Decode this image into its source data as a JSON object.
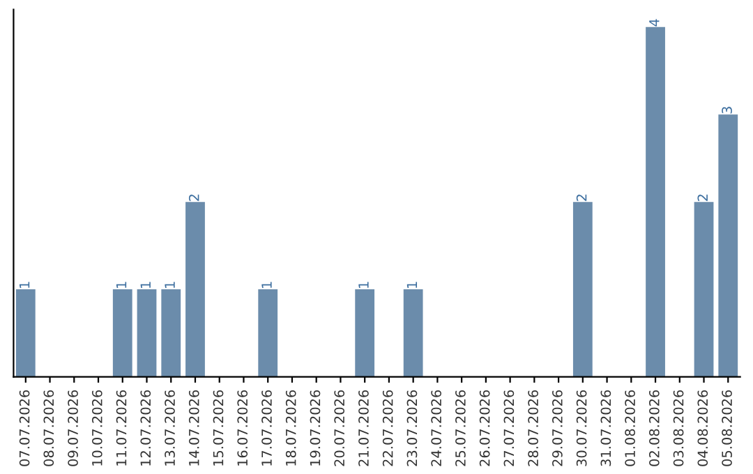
{
  "chart_data": {
    "type": "bar",
    "categories": [
      "07.07.2026",
      "08.07.2026",
      "09.07.2026",
      "10.07.2026",
      "11.07.2026",
      "12.07.2026",
      "13.07.2026",
      "14.07.2026",
      "15.07.2026",
      "16.07.2026",
      "17.07.2026",
      "18.07.2026",
      "19.07.2026",
      "20.07.2026",
      "21.07.2026",
      "22.07.2026",
      "23.07.2026",
      "24.07.2026",
      "25.07.2026",
      "26.07.2026",
      "27.07.2026",
      "28.07.2026",
      "29.07.2026",
      "30.07.2026",
      "31.07.2026",
      "01.08.2026",
      "02.08.2026",
      "03.08.2026",
      "04.08.2026",
      "05.08.2026"
    ],
    "values": [
      1,
      0,
      0,
      0,
      1,
      1,
      1,
      2,
      0,
      0,
      1,
      0,
      0,
      0,
      1,
      0,
      1,
      0,
      0,
      0,
      0,
      0,
      0,
      2,
      0,
      0,
      4,
      0,
      2,
      3
    ],
    "value_labels": [
      "1",
      null,
      null,
      null,
      "1",
      "1",
      "1",
      "2",
      null,
      null,
      "1",
      null,
      null,
      null,
      "1",
      null,
      "1",
      null,
      null,
      null,
      null,
      null,
      null,
      "2",
      null,
      null,
      "4",
      null,
      "2",
      "3"
    ],
    "color": "#6b8cab",
    "grid": false,
    "legend": false,
    "tick_labels": "x"
  }
}
